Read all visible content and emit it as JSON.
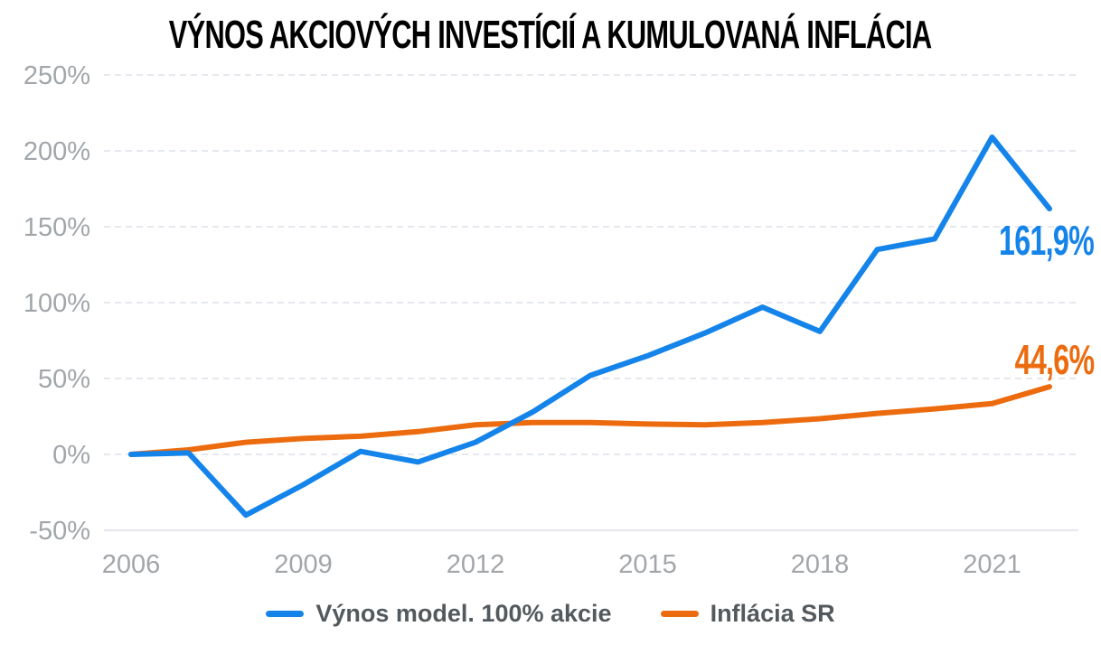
{
  "title": "VÝNOS AKCIOVÝCH INVESTÍCIÍ A KUMULOVANÁ INFLÁCIA",
  "colors": {
    "blue": "#1584EA",
    "orange": "#EC6B0E",
    "axis_label": "#A2A6AA",
    "grid": "#E5E8EE",
    "baseline": "#E4E6F0",
    "legend_text": "#54595D",
    "title": "#000000",
    "background": "#FFFFFF"
  },
  "chart_data": {
    "type": "line",
    "title": "VÝNOS AKCIOVÝCH INVESTÍCIÍ A KUMULOVANÁ INFLÁCIA",
    "x": [
      2006,
      2007,
      2008,
      2009,
      2010,
      2011,
      2012,
      2013,
      2014,
      2015,
      2016,
      2017,
      2018,
      2019,
      2020,
      2021,
      2022
    ],
    "series": [
      {
        "name": "Výnos model. 100% akcie",
        "color": "blue",
        "values": [
          0,
          1,
          -40,
          -20,
          2,
          -5,
          8,
          28,
          52,
          65,
          80,
          97,
          81,
          135,
          142,
          209,
          161.9
        ],
        "end_label": "161,9%"
      },
      {
        "name": "Inflácia SR",
        "color": "orange",
        "values": [
          0,
          3,
          8,
          10.5,
          12,
          15,
          19.5,
          21,
          21,
          20,
          19.5,
          21,
          23.5,
          27,
          30,
          33.5,
          44.6
        ],
        "end_label": "44,6%"
      }
    ],
    "xlabel": "",
    "ylabel": "",
    "ylim": [
      -50,
      250
    ],
    "yticks": [
      250,
      200,
      150,
      100,
      50,
      0,
      -50
    ],
    "ytick_labels": [
      "250%",
      "200%",
      "150%",
      "100%",
      "50%",
      "0%",
      "-50%"
    ],
    "xticks": [
      2006,
      2009,
      2012,
      2015,
      2018,
      2021
    ],
    "xtick_labels": [
      "2006",
      "2009",
      "2012",
      "2015",
      "2018",
      "2021"
    ],
    "grid": "horizontal-dashed",
    "legend_position": "bottom"
  }
}
